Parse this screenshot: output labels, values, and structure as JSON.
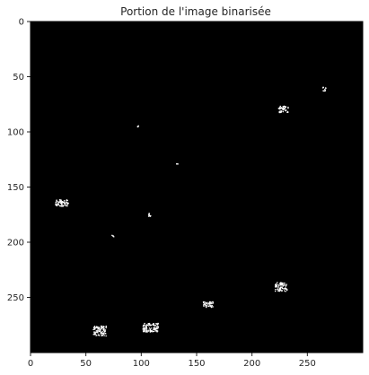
{
  "chart_data": {
    "type": "heatmap",
    "title": "Portion de l'image binarisée",
    "xlabel": "",
    "ylabel": "",
    "xlim": [
      0,
      300
    ],
    "ylim": [
      300,
      0
    ],
    "x_ticks": [
      0,
      50,
      100,
      150,
      200,
      250
    ],
    "y_ticks": [
      0,
      50,
      100,
      150,
      200,
      250
    ],
    "background_color": "#000000",
    "foreground_color": "#ffffff",
    "blobs": [
      {
        "x": 228,
        "y": 79
      },
      {
        "x": 265,
        "y": 61
      },
      {
        "x": 97,
        "y": 95
      },
      {
        "x": 132,
        "y": 129
      },
      {
        "x": 28,
        "y": 164
      },
      {
        "x": 107,
        "y": 175
      },
      {
        "x": 74,
        "y": 194
      },
      {
        "x": 226,
        "y": 240
      },
      {
        "x": 160,
        "y": 256
      },
      {
        "x": 62,
        "y": 280
      },
      {
        "x": 108,
        "y": 277
      }
    ]
  }
}
